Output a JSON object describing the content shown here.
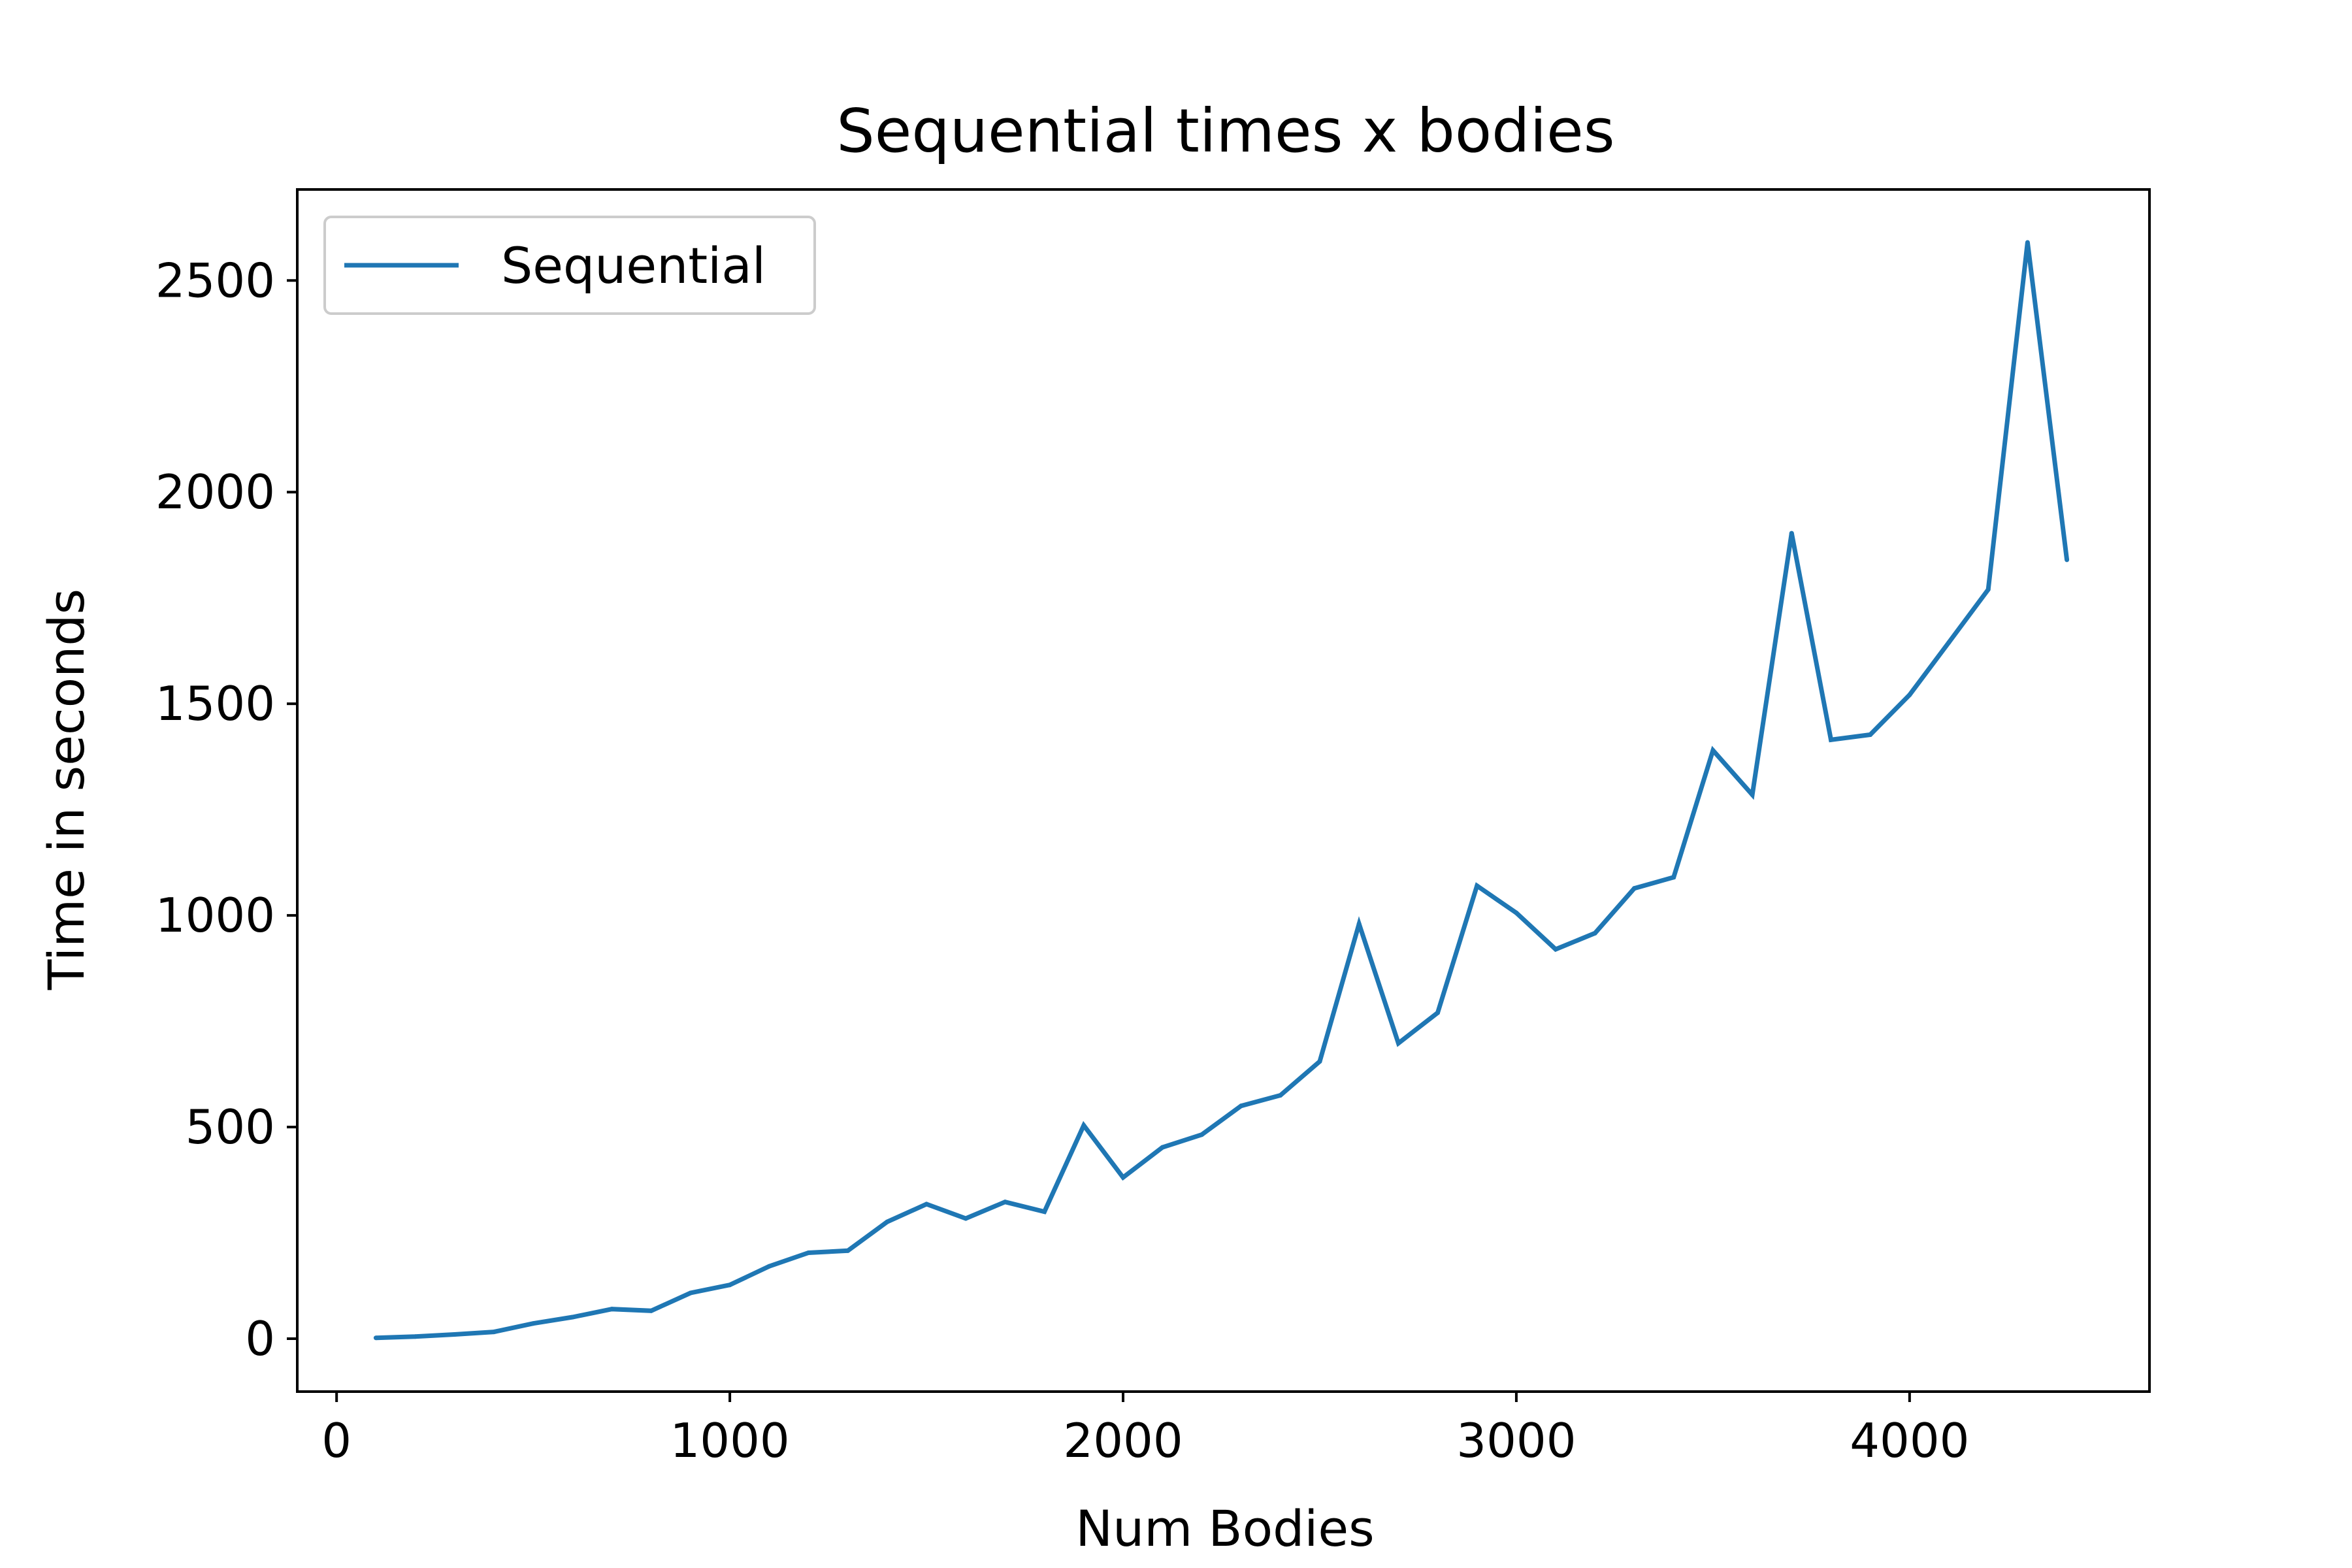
{
  "chart_data": {
    "type": "line",
    "title": "Sequential times x bodies",
    "xlabel": "Num Bodies",
    "ylabel": "Time in seconds",
    "xlim": [
      -100,
      4610
    ],
    "ylim": [
      -125,
      2715
    ],
    "x_ticks": [
      0,
      1000,
      2000,
      3000,
      4000
    ],
    "y_ticks": [
      0,
      500,
      1000,
      1500,
      2000,
      2500
    ],
    "x_tick_labels": [
      "0",
      "1000",
      "2000",
      "3000",
      "4000"
    ],
    "y_tick_labels": [
      "0",
      "500",
      "1000",
      "1500",
      "2000",
      "2500"
    ],
    "grid": false,
    "legend": {
      "position": "top-left",
      "entries": [
        "Sequential"
      ]
    },
    "series": [
      {
        "name": "Sequential",
        "color": "#1f77b4",
        "x": [
          100,
          200,
          300,
          400,
          500,
          600,
          700,
          800,
          900,
          1000,
          1100,
          1200,
          1300,
          1400,
          1500,
          1600,
          1700,
          1800,
          1900,
          2000,
          2100,
          2200,
          2300,
          2400,
          2500,
          2600,
          2700,
          2800,
          2900,
          3000,
          3100,
          3200,
          3300,
          3400,
          3500,
          3600,
          3700,
          3800,
          3900,
          4000,
          4100,
          4200,
          4300,
          4400
        ],
        "y": [
          2,
          5,
          10,
          16,
          36,
          51,
          70,
          66,
          108,
          127,
          171,
          203,
          208,
          276,
          318,
          284,
          323,
          300,
          504,
          381,
          452,
          482,
          550,
          575,
          655,
          980,
          698,
          770,
          1070,
          1006,
          920,
          958,
          1064,
          1090,
          1390,
          1285,
          1903,
          1415,
          1427,
          1521,
          1645,
          1770,
          2590,
          1840
        ]
      }
    ]
  }
}
